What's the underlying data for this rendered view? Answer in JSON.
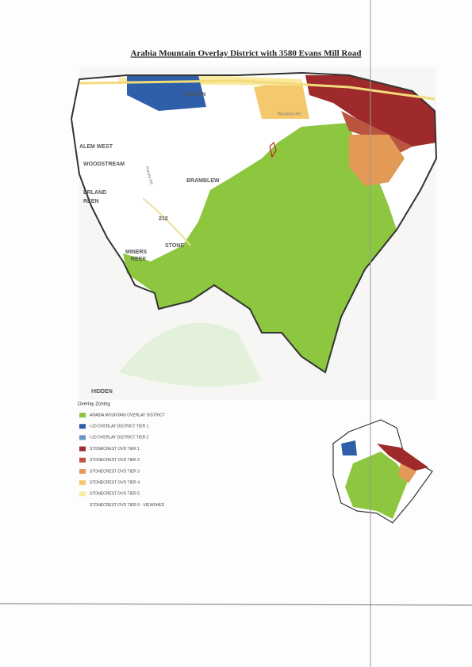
{
  "title": "Arabia Mountain Overlay District with 3580 Evans Mill Road",
  "map_labels": [
    "INGTON",
    "ALEM WEST",
    "WOODSTREAM",
    "BRAMBLEW",
    "ERLAND",
    "REEN",
    "212",
    "STONE",
    "MINERS",
    "REEK",
    "Panola Rd",
    "Woodrow Rd",
    "HIDDEN"
  ],
  "legend": {
    "title": "Overlay Zoning",
    "items": [
      {
        "label": "ARABIA MOUNTAIN OVERLAY DISTRICT",
        "color": "#8dc63f"
      },
      {
        "label": "I-20 OVERLAY DISTRICT TIER 1",
        "color": "#2e5fa8"
      },
      {
        "label": "I-20 OVERLAY DISTRICT TIER 2",
        "color": "#6a93c9"
      },
      {
        "label": "STONECREST OVD TIER 1",
        "color": "#9e2a2b"
      },
      {
        "label": "STONECREST OVD TIER 2",
        "color": "#b9543e"
      },
      {
        "label": "STONECREST OVD TIER 3",
        "color": "#e39a56"
      },
      {
        "label": "STONECREST OVD TIER 4",
        "color": "#f4c86c"
      },
      {
        "label": "STONECREST OVD TIER 5",
        "color": "#faeaa0"
      },
      {
        "label": "STONECREST OVD TIER 6 - VIEWSHED",
        "color": "#ffffff"
      }
    ]
  }
}
